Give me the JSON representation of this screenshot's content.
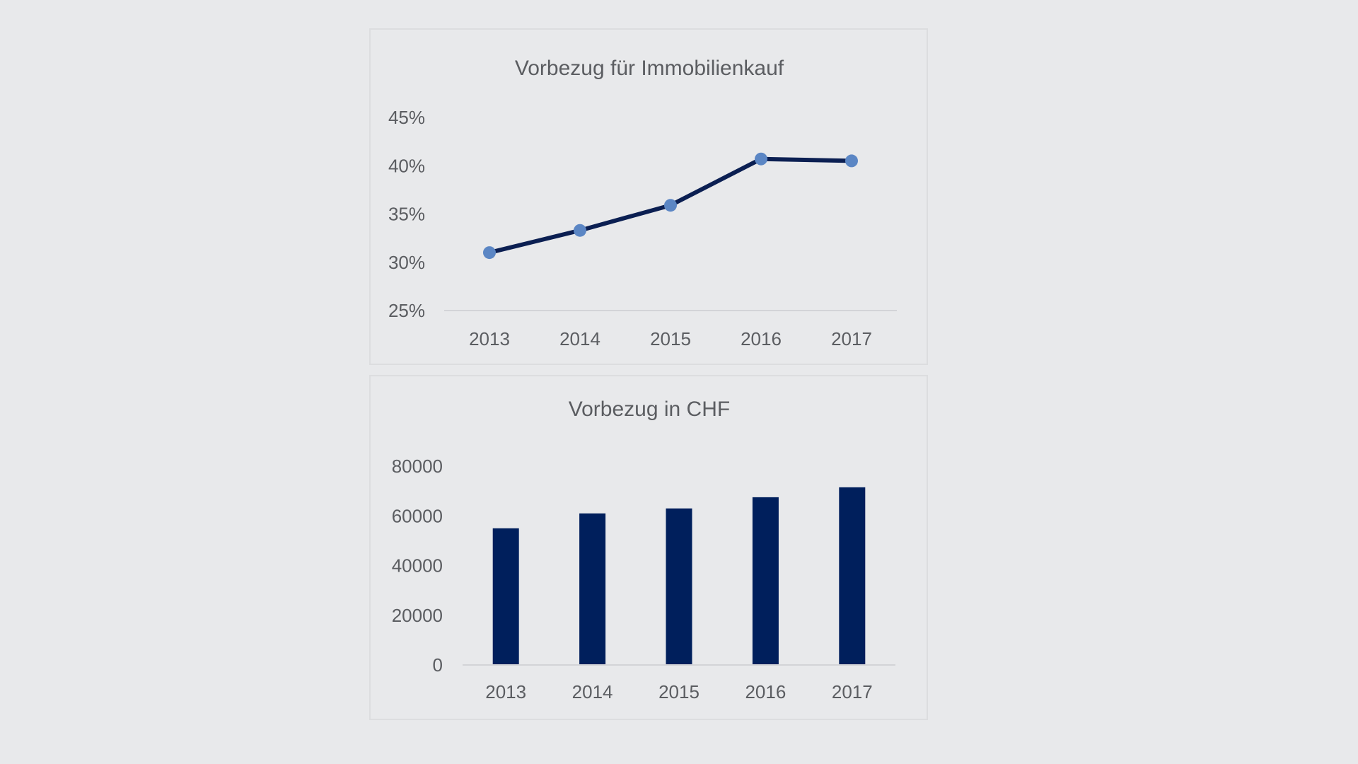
{
  "charts": [
    {
      "id": "line",
      "type": "line",
      "title": "Vorbezug für Immobilienkauf",
      "categories": [
        "2013",
        "2014",
        "2015",
        "2016",
        "2017"
      ],
      "values": [
        0.31,
        0.333,
        0.359,
        0.407,
        0.405
      ],
      "ylim": [
        0.25,
        0.45
      ],
      "yticks": [
        "25%",
        "30%",
        "35%",
        "40%",
        "45%"
      ],
      "line_color": "#0b1f52",
      "marker_color": "#5b86c4"
    },
    {
      "id": "bar",
      "type": "bar",
      "title": "Vorbezug in CHF",
      "categories": [
        "2013",
        "2014",
        "2015",
        "2016",
        "2017"
      ],
      "values": [
        55000,
        61000,
        63000,
        67500,
        71500
      ],
      "ylim": [
        0,
        80000
      ],
      "yticks": [
        "0",
        "20000",
        "40000",
        "60000",
        "80000"
      ],
      "bar_color": "#001f5c"
    }
  ],
  "chart_data": [
    {
      "type": "line",
      "title": "Vorbezug für Immobilienkauf",
      "categories": [
        "2013",
        "2014",
        "2015",
        "2016",
        "2017"
      ],
      "values": [
        0.31,
        0.333,
        0.359,
        0.407,
        0.405
      ],
      "ylim": [
        0.25,
        0.45
      ],
      "y_tick_labels": [
        "25%",
        "30%",
        "35%",
        "40%",
        "45%"
      ],
      "grid": false,
      "legend": "none"
    },
    {
      "type": "bar",
      "title": "Vorbezug in CHF",
      "categories": [
        "2013",
        "2014",
        "2015",
        "2016",
        "2017"
      ],
      "values": [
        55000,
        61000,
        63000,
        67500,
        71500
      ],
      "ylim": [
        0,
        80000
      ],
      "y_tick_labels": [
        "0",
        "20000",
        "40000",
        "60000",
        "80000"
      ],
      "grid": false,
      "legend": "none"
    }
  ]
}
